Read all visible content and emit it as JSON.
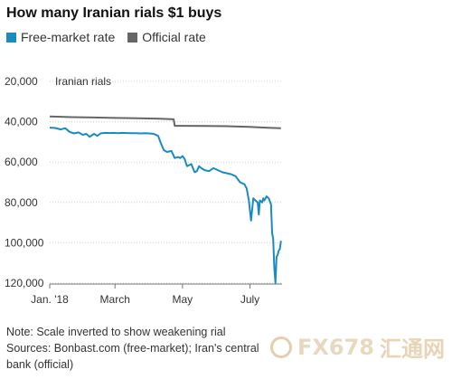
{
  "title": "How many Iranian rials $1 buys",
  "legend": {
    "free_label": "Free-market rate",
    "official_label": "Official rate"
  },
  "colors": {
    "free": "#1a8bc1",
    "official": "#666666",
    "grid": "#d0d0d0",
    "axis": "#777777"
  },
  "chart_data": {
    "type": "line",
    "title": "How many Iranian rials $1 buys",
    "ylabel": "",
    "y_unit_label": "Iranian rials",
    "ylim": [
      20000,
      120000
    ],
    "y_inverted": true,
    "yticks": [
      20000,
      40000,
      60000,
      80000,
      100000,
      120000
    ],
    "ytick_labels": [
      "20,000",
      "40,000",
      "60,000",
      "80,000",
      "100,000",
      "120,000"
    ],
    "xlim": [
      0,
      210
    ],
    "xticks": [
      0,
      59,
      120,
      181
    ],
    "xtick_labels": [
      "Jan. '18",
      "March",
      "May",
      "July"
    ],
    "grid": true,
    "legend_position": "top-left",
    "series": [
      {
        "name": "Free-market rate",
        "color": "#1a8bc1",
        "x": [
          0,
          5,
          10,
          14,
          18,
          22,
          26,
          30,
          33,
          36,
          40,
          43,
          46,
          50,
          54,
          58,
          62,
          66,
          70,
          74,
          78,
          82,
          86,
          90,
          94,
          98,
          100,
          103,
          106,
          110,
          113,
          116,
          118,
          120,
          122,
          124,
          128,
          131,
          133,
          135,
          137,
          140,
          144,
          148,
          152,
          156,
          160,
          164,
          168,
          172,
          176,
          178,
          180,
          182,
          184,
          186,
          188,
          189,
          190,
          192,
          193,
          194,
          196,
          198,
          200,
          201,
          202,
          203,
          204,
          205,
          206,
          207,
          208,
          209
        ],
        "y": [
          42900,
          43100,
          43800,
          43200,
          45000,
          45800,
          45300,
          46500,
          46000,
          47500,
          46000,
          47000,
          45800,
          45500,
          45600,
          45500,
          45700,
          45500,
          45600,
          45700,
          45700,
          45800,
          45700,
          45800,
          46000,
          47000,
          50000,
          54000,
          55000,
          54500,
          58000,
          57500,
          58000,
          57000,
          58500,
          62000,
          61000,
          65000,
          64500,
          62000,
          63000,
          64000,
          64500,
          63000,
          64000,
          65000,
          65500,
          66000,
          67000,
          70000,
          71000,
          73000,
          79000,
          89000,
          78000,
          79000,
          80000,
          86000,
          79000,
          80000,
          78000,
          79000,
          77000,
          78000,
          81000,
          95000,
          98000,
          112000,
          120000,
          107000,
          106000,
          104000,
          103000,
          99000
        ]
      },
      {
        "name": "Official rate",
        "color": "#666666",
        "x": [
          0,
          20,
          40,
          60,
          80,
          100,
          112,
          113,
          120,
          140,
          160,
          180,
          195,
          209
        ],
        "y": [
          37400,
          37700,
          37900,
          38100,
          38300,
          38500,
          38800,
          42000,
          42000,
          42100,
          42200,
          42500,
          42900,
          43200
        ]
      }
    ]
  },
  "note": "Note: Scale inverted to show weakening rial",
  "sources": "Sources: Bonbast.com (free-market); Iran's central",
  "sources_cont": "bank (official)",
  "watermark": {
    "brand": "FX678",
    "cn": "汇通网"
  }
}
